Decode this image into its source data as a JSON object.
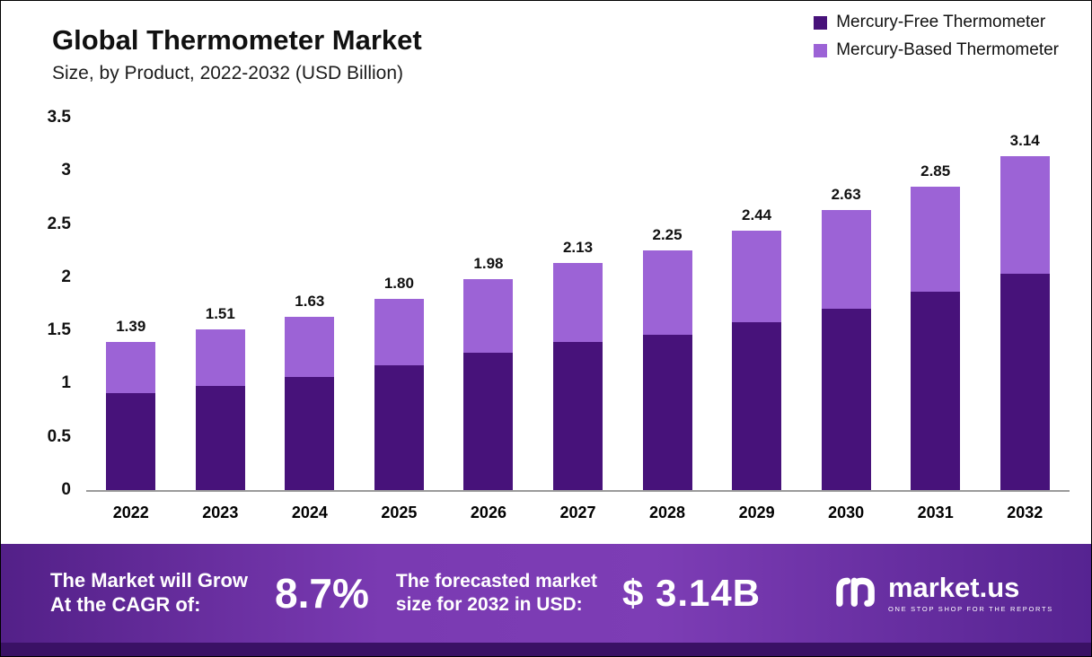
{
  "header": {
    "title": "Global Thermometer Market",
    "subtitle": "Size, by Product, 2022-2032 (USD Billion)"
  },
  "legend": [
    {
      "label": "Mercury-Free Thermometer",
      "color": "#47127a"
    },
    {
      "label": "Mercury-Based Thermometer",
      "color": "#9c63d6"
    }
  ],
  "chart_data": {
    "type": "bar",
    "stacked": true,
    "title": "Global Thermometer Market Size, by Product, 2022-2032 (USD Billion)",
    "categories": [
      "2022",
      "2023",
      "2024",
      "2025",
      "2026",
      "2027",
      "2028",
      "2029",
      "2030",
      "2031",
      "2032"
    ],
    "series": [
      {
        "name": "Mercury-Free Thermometer",
        "color": "#47127a",
        "values": [
          0.91,
          0.98,
          1.06,
          1.17,
          1.29,
          1.39,
          1.46,
          1.58,
          1.7,
          1.86,
          2.03
        ]
      },
      {
        "name": "Mercury-Based Thermometer",
        "color": "#9c63d6",
        "values": [
          0.48,
          0.53,
          0.57,
          0.63,
          0.69,
          0.74,
          0.79,
          0.86,
          0.93,
          0.99,
          1.11
        ]
      }
    ],
    "totals": [
      1.39,
      1.51,
      1.63,
      1.8,
      1.98,
      2.13,
      2.25,
      2.44,
      2.63,
      2.85,
      3.14
    ],
    "total_labels": [
      "1.39",
      "1.51",
      "1.63",
      "1.80",
      "1.98",
      "2.13",
      "2.25",
      "2.44",
      "2.63",
      "2.85",
      "3.14"
    ],
    "ylim": [
      0,
      3.5
    ],
    "yticks": [
      "3.5",
      "3",
      "2.5",
      "2",
      "1.5",
      "1",
      "0.5",
      "0"
    ],
    "xlabel": "",
    "ylabel": "",
    "grid": false,
    "legend_position": "top-right"
  },
  "footer": {
    "cagr_label": "The Market will Grow\nAt the CAGR of:",
    "cagr_value": "8.7%",
    "forecast_label": "The forecasted market\nsize for 2032 in USD:",
    "forecast_value": "$ 3.14B",
    "brand": "market.us",
    "brand_tagline": "ONE STOP SHOP FOR THE REPORTS"
  }
}
